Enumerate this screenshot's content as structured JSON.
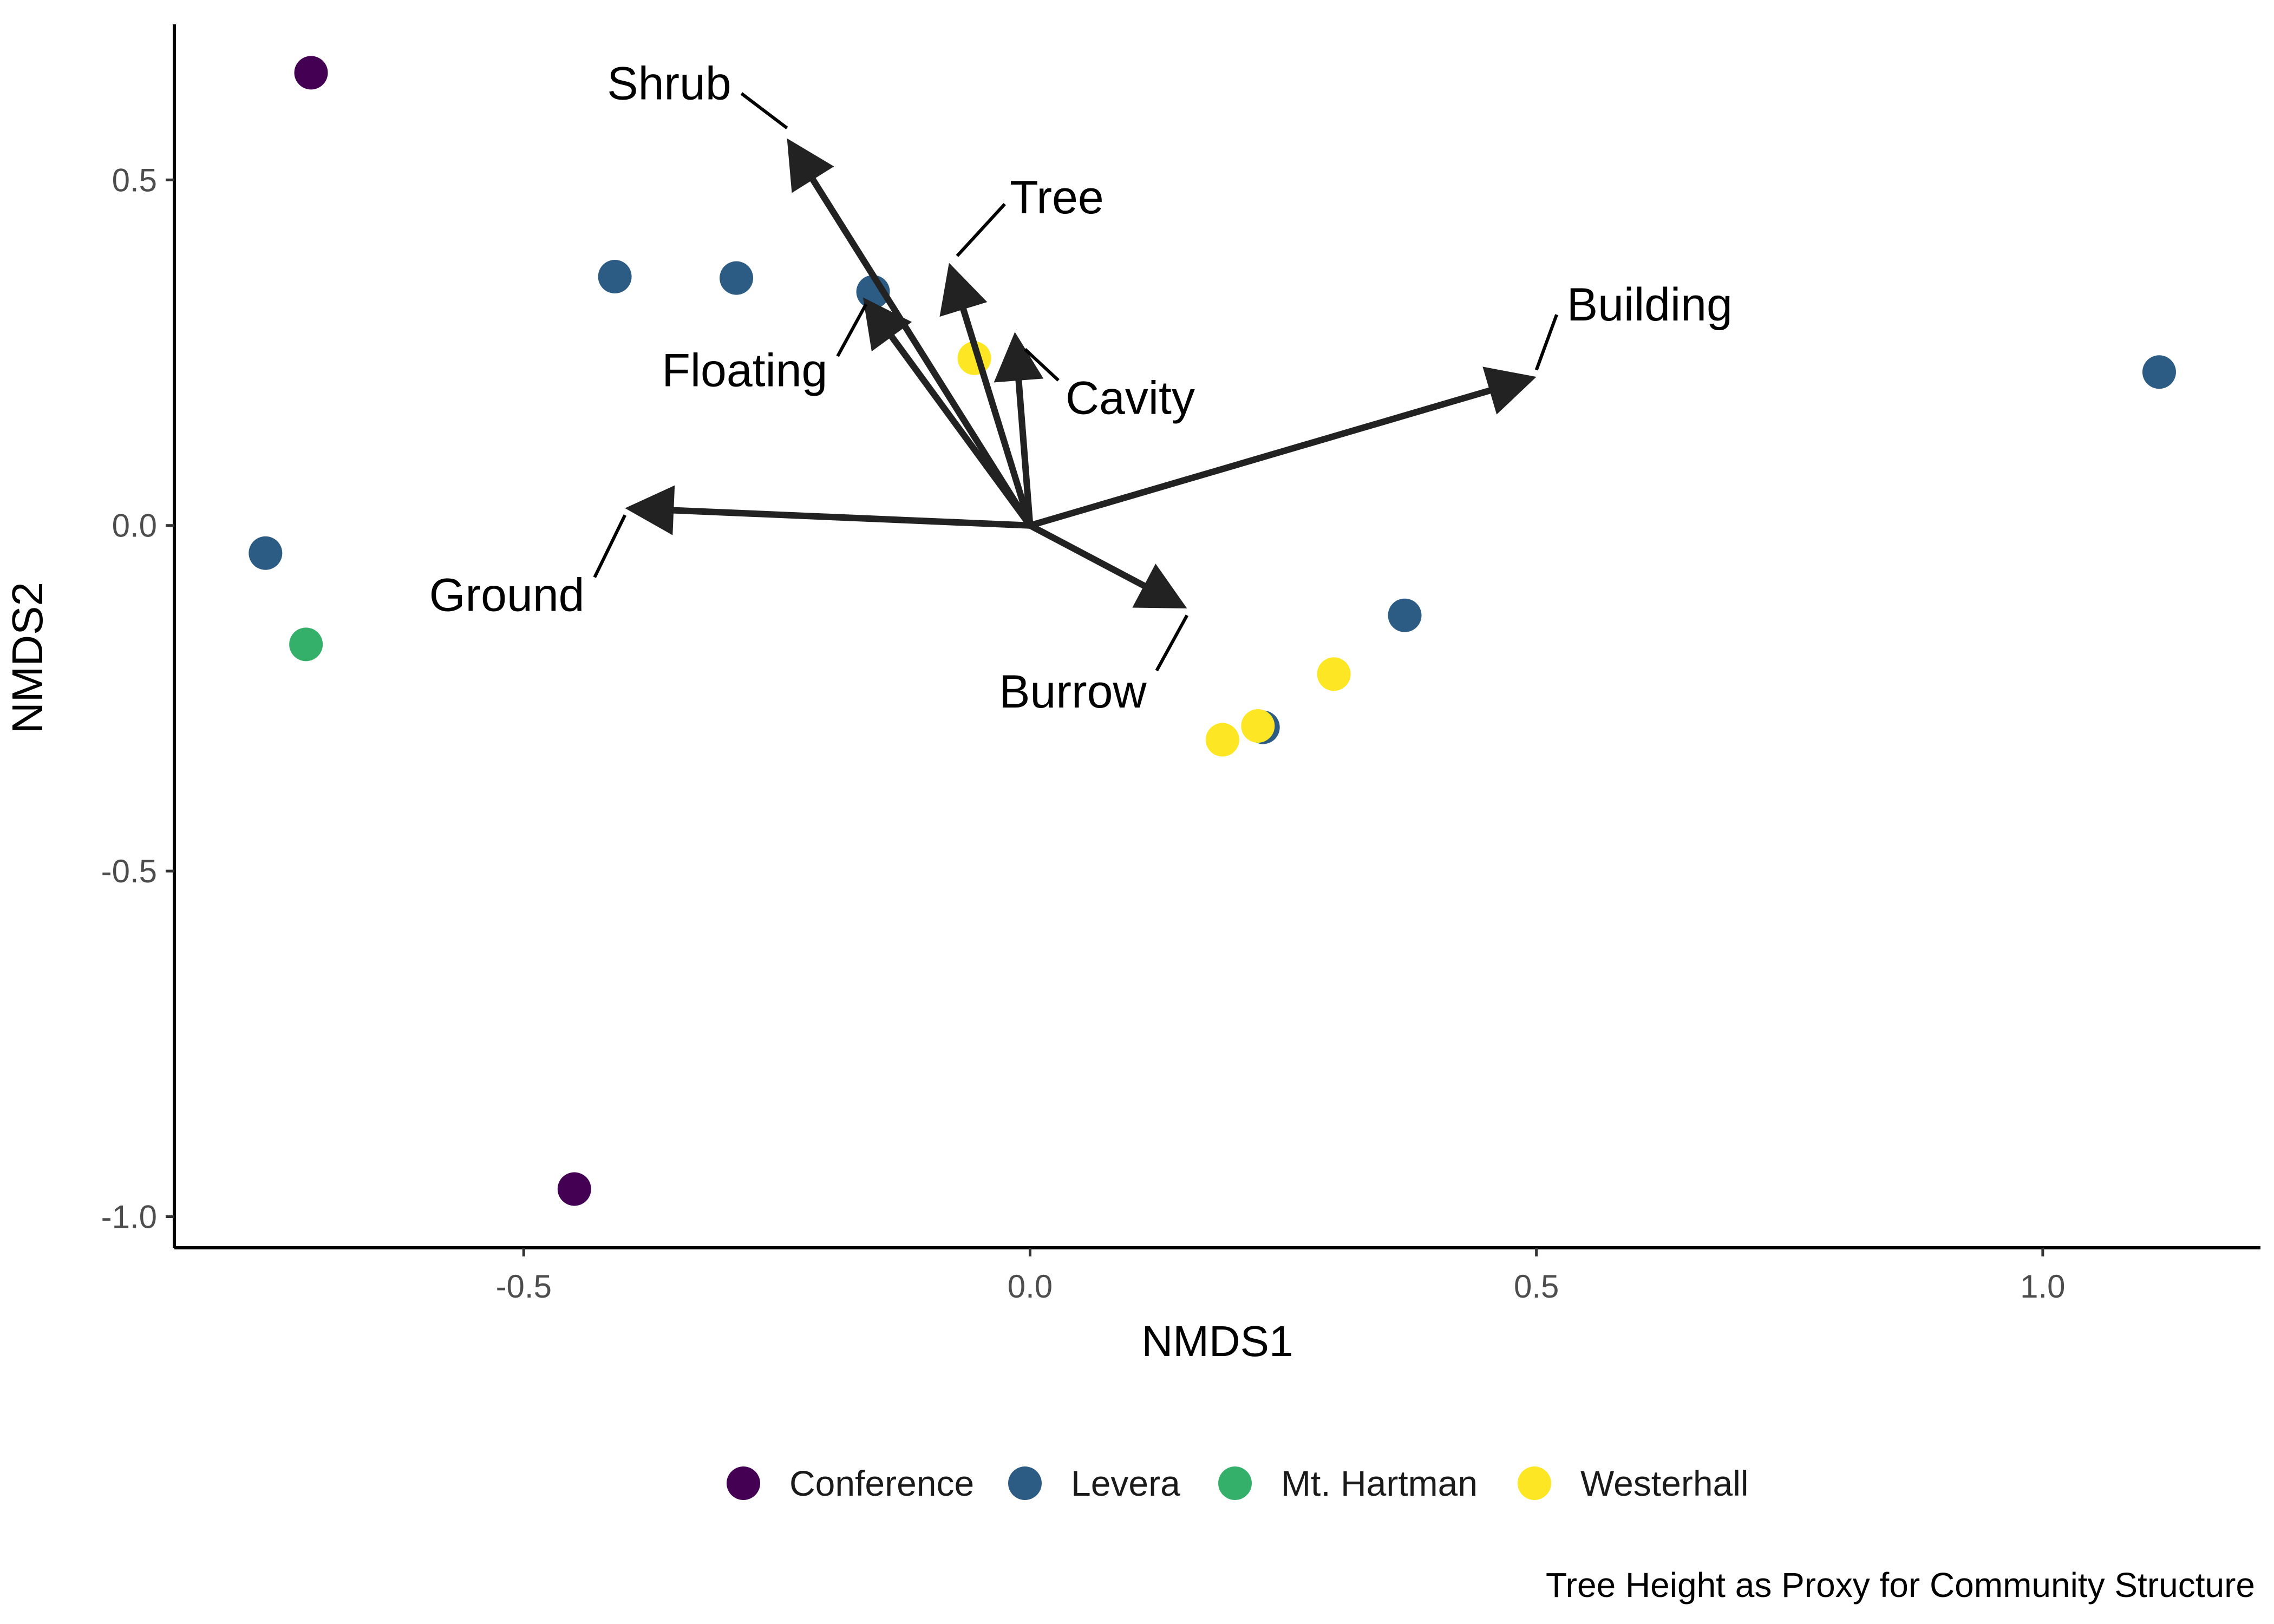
{
  "chart_data": {
    "type": "scatter",
    "xlabel": "NMDS1",
    "ylabel": "NMDS2",
    "xlim": [
      -0.845,
      1.215
    ],
    "ylim": [
      -1.045,
      0.725
    ],
    "xticks": [
      -0.5,
      0.0,
      0.5,
      1.0
    ],
    "xtick_labels": [
      "-0.5",
      "0.0",
      "0.5",
      "1.0"
    ],
    "yticks": [
      -1.0,
      -0.5,
      0.0,
      0.5
    ],
    "ytick_labels": [
      "-1.0",
      "-0.5",
      "0.0",
      "0.5"
    ],
    "grid": false,
    "legend_position": "bottom",
    "caption": "Tree Height as Proxy for Community Structure",
    "series": [
      {
        "name": "Conference",
        "color": "#440154",
        "points": [
          [
            -0.71,
            0.655
          ],
          [
            -0.45,
            -0.96
          ]
        ]
      },
      {
        "name": "Levera",
        "color": "#2c5c84",
        "points": [
          [
            -0.41,
            0.36
          ],
          [
            -0.29,
            0.358
          ],
          [
            -0.155,
            0.338
          ],
          [
            -0.755,
            -0.04
          ],
          [
            0.37,
            -0.13
          ],
          [
            0.23,
            -0.292
          ],
          [
            1.115,
            0.222
          ]
        ]
      },
      {
        "name": "Mt. Hartman",
        "color": "#34b06a",
        "points": [
          [
            -0.715,
            -0.172
          ]
        ]
      },
      {
        "name": "Westerhall",
        "color": "#fde724",
        "points": [
          [
            -0.055,
            0.242
          ],
          [
            0.19,
            -0.31
          ],
          [
            0.225,
            -0.29
          ],
          [
            0.3,
            -0.215
          ]
        ]
      }
    ],
    "vectors": [
      {
        "label": "Shrub",
        "end": [
          -0.24,
          0.56
        ],
        "label_pos": [
          -0.295,
          0.64
        ],
        "anchor": "end",
        "leader": [
          [
            -0.285,
            0.625
          ],
          [
            -0.24,
            0.575
          ]
        ]
      },
      {
        "label": "Tree",
        "end": [
          -0.08,
          0.38
        ],
        "label_pos": [
          -0.02,
          0.475
        ],
        "anchor": "start",
        "leader": [
          [
            -0.025,
            0.465
          ],
          [
            -0.072,
            0.39
          ]
        ]
      },
      {
        "label": "Floating",
        "end": [
          -0.165,
          0.33
        ],
        "label_pos": [
          -0.2,
          0.225
        ],
        "anchor": "end",
        "leader": [
          [
            -0.19,
            0.245
          ],
          [
            -0.162,
            0.32
          ]
        ]
      },
      {
        "label": "Cavity",
        "end": [
          -0.015,
          0.28
        ],
        "label_pos": [
          0.035,
          0.185
        ],
        "anchor": "start",
        "leader": [
          [
            0.028,
            0.21
          ],
          [
            -0.005,
            0.255
          ]
        ]
      },
      {
        "label": "Building",
        "end": [
          0.5,
          0.215
        ],
        "label_pos": [
          0.53,
          0.32
        ],
        "anchor": "start",
        "leader": [
          [
            0.52,
            0.305
          ],
          [
            0.5,
            0.225
          ]
        ]
      },
      {
        "label": "Ground",
        "end": [
          -0.4,
          0.025
        ],
        "label_pos": [
          -0.44,
          -0.1
        ],
        "anchor": "end",
        "leader": [
          [
            -0.43,
            -0.075
          ],
          [
            -0.4,
            0.015
          ]
        ]
      },
      {
        "label": "Burrow",
        "end": [
          0.155,
          -0.12
        ],
        "label_pos": [
          0.115,
          -0.24
        ],
        "anchor": "end",
        "leader": [
          [
            0.125,
            -0.21
          ],
          [
            0.155,
            -0.13
          ]
        ]
      }
    ]
  }
}
